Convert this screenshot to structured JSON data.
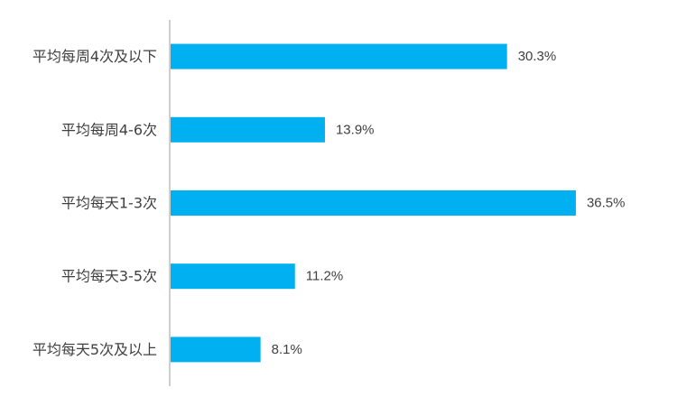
{
  "chart_data": {
    "type": "bar",
    "orientation": "horizontal",
    "categories": [
      "平均每周4次及以下",
      "平均每周4-6次",
      "平均每天1-3次",
      "平均每天3-5次",
      "平均每天5次及以上"
    ],
    "values": [
      30.3,
      13.9,
      36.5,
      11.2,
      8.1
    ],
    "value_labels": [
      "30.3%",
      "13.9%",
      "36.5%",
      "11.2%",
      "8.1%"
    ],
    "unit": "%",
    "xlim": [
      0,
      40
    ],
    "grid": false,
    "legend": "none",
    "bar_color": "#00B0F0",
    "axis_color": "#BFBFBF"
  }
}
